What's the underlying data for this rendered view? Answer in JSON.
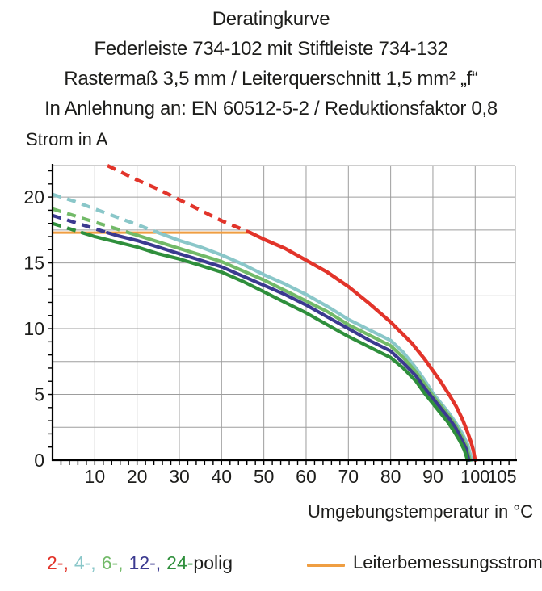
{
  "title": {
    "line1": "Deratingkurve",
    "line2": "Federleiste 734-102 mit Stiftleiste 734-132",
    "line3": "Rastermaß 3,5 mm / Leiterquerschnitt 1,5 mm² „f“",
    "line4": "In Anlehnung an: EN 60512-5-2 / Reduktionsfaktor 0,8"
  },
  "axes": {
    "y_label": "Strom in A",
    "x_label": "Umgebungstemperatur in °C"
  },
  "legend": {
    "poles": [
      {
        "label": "2-,",
        "color": "#e2342a"
      },
      {
        "label": "4-,",
        "color": "#8ac7c9"
      },
      {
        "label": "6-,",
        "color": "#72ba68"
      },
      {
        "label": "12-,",
        "color": "#3b3a90"
      },
      {
        "label": "24-",
        "color": "#2f8f3c"
      }
    ],
    "poles_suffix": "polig",
    "rated_label": "Leiterbemessungsstrom",
    "rated_color": "#ef9e42"
  },
  "chart_data": {
    "type": "line",
    "title": "Deratingkurve Federleiste 734-102 mit Stiftleiste 734-132",
    "xlabel": "Umgebungstemperatur in °C",
    "ylabel": "Strom in A",
    "xlim": [
      0,
      109.5
    ],
    "ylim": [
      0,
      22.4
    ],
    "x_tick_labels": [
      10,
      20,
      30,
      40,
      50,
      60,
      70,
      80,
      90,
      100,
      105
    ],
    "x_gridline_step": 10,
    "x_minor_tick_step": 2,
    "y_tick_labels": [
      0,
      5,
      10,
      15,
      20
    ],
    "y_gridline_step": 2.5,
    "y_minor_tick_step": 1,
    "grid": true,
    "grid_color": "#9d9d9d",
    "axis_color": "#000000",
    "rated_current_line": {
      "label": "Leiterbemessungsstrom",
      "value": 17.3,
      "x_start": 0,
      "x_end": 46.8,
      "color": "#ef9e42"
    },
    "note": "Curves are dashed above the Leiterbemessungsstrom line and solid below it; all curves fall to 0 A near 100 °C.",
    "series": [
      {
        "name": "4-polig",
        "color": "#8ac7c9",
        "dashed": [
          [
            0,
            20.2
          ],
          [
            5,
            19.7
          ],
          [
            10,
            19.1
          ],
          [
            15,
            18.5
          ],
          [
            20,
            17.9
          ],
          [
            25,
            17.3
          ]
        ],
        "solid": [
          [
            25,
            17.3
          ],
          [
            30,
            16.7
          ],
          [
            35,
            16.2
          ],
          [
            40,
            15.6
          ],
          [
            45,
            14.9
          ],
          [
            50,
            14.1
          ],
          [
            55,
            13.4
          ],
          [
            60,
            12.6
          ],
          [
            65,
            11.7
          ],
          [
            70,
            10.7
          ],
          [
            75,
            9.9
          ],
          [
            80,
            9.1
          ],
          [
            83,
            8.2
          ],
          [
            86,
            7.0
          ],
          [
            88,
            6.1
          ],
          [
            90,
            5.1
          ],
          [
            92,
            4.3
          ],
          [
            94,
            3.5
          ],
          [
            95.5,
            2.8
          ],
          [
            97,
            2.0
          ],
          [
            98.2,
            1.2
          ],
          [
            99.2,
            0
          ]
        ]
      },
      {
        "name": "6-polig",
        "color": "#72ba68",
        "dashed": [
          [
            0,
            19.1
          ],
          [
            5,
            18.6
          ],
          [
            10,
            18.1
          ],
          [
            14,
            17.7
          ],
          [
            18,
            17.3
          ]
        ],
        "solid": [
          [
            18,
            17.3
          ],
          [
            20,
            17.1
          ],
          [
            25,
            16.6
          ],
          [
            30,
            16.1
          ],
          [
            35,
            15.6
          ],
          [
            40,
            15.1
          ],
          [
            45,
            14.4
          ],
          [
            50,
            13.7
          ],
          [
            55,
            12.9
          ],
          [
            60,
            12.1
          ],
          [
            65,
            11.3
          ],
          [
            70,
            10.3
          ],
          [
            75,
            9.5
          ],
          [
            80,
            8.7
          ],
          [
            83,
            7.8
          ],
          [
            86,
            6.7
          ],
          [
            88,
            5.8
          ],
          [
            90,
            4.9
          ],
          [
            92,
            4.1
          ],
          [
            94,
            3.3
          ],
          [
            95.5,
            2.6
          ],
          [
            96.8,
            1.8
          ],
          [
            98,
            1.0
          ],
          [
            98.8,
            0
          ]
        ]
      },
      {
        "name": "12-polig",
        "color": "#3b3a90",
        "dashed": [
          [
            0,
            18.6
          ],
          [
            4,
            18.2
          ],
          [
            8,
            17.8
          ],
          [
            13,
            17.3
          ]
        ],
        "solid": [
          [
            13,
            17.3
          ],
          [
            15,
            17.1
          ],
          [
            20,
            16.7
          ],
          [
            25,
            16.2
          ],
          [
            30,
            15.7
          ],
          [
            35,
            15.2
          ],
          [
            40,
            14.7
          ],
          [
            45,
            14.0
          ],
          [
            50,
            13.3
          ],
          [
            55,
            12.6
          ],
          [
            60,
            11.8
          ],
          [
            65,
            10.9
          ],
          [
            70,
            10.0
          ],
          [
            75,
            9.1
          ],
          [
            80,
            8.3
          ],
          [
            83,
            7.4
          ],
          [
            86,
            6.4
          ],
          [
            88,
            5.5
          ],
          [
            90,
            4.7
          ],
          [
            92,
            3.9
          ],
          [
            94,
            3.1
          ],
          [
            95.5,
            2.4
          ],
          [
            96.6,
            1.7
          ],
          [
            97.8,
            0.9
          ],
          [
            98.5,
            0
          ]
        ]
      },
      {
        "name": "24-polig",
        "color": "#2f8f3c",
        "dashed": [
          [
            0,
            18.0
          ],
          [
            3,
            17.7
          ],
          [
            7,
            17.3
          ]
        ],
        "solid": [
          [
            7,
            17.3
          ],
          [
            10,
            17.0
          ],
          [
            15,
            16.6
          ],
          [
            20,
            16.2
          ],
          [
            25,
            15.7
          ],
          [
            30,
            15.3
          ],
          [
            35,
            14.8
          ],
          [
            40,
            14.3
          ],
          [
            45,
            13.6
          ],
          [
            50,
            12.8
          ],
          [
            55,
            12.0
          ],
          [
            60,
            11.2
          ],
          [
            65,
            10.3
          ],
          [
            70,
            9.4
          ],
          [
            75,
            8.6
          ],
          [
            80,
            7.8
          ],
          [
            83,
            7.0
          ],
          [
            86,
            6.0
          ],
          [
            88,
            5.1
          ],
          [
            90,
            4.3
          ],
          [
            92,
            3.5
          ],
          [
            93.5,
            2.9
          ],
          [
            95,
            2.2
          ],
          [
            96.3,
            1.5
          ],
          [
            97.4,
            0.8
          ],
          [
            98.2,
            0
          ]
        ]
      },
      {
        "name": "2-polig",
        "color": "#e2342a",
        "dashed": [
          [
            13,
            22.4
          ],
          [
            20,
            21.3
          ],
          [
            25,
            20.6
          ],
          [
            30,
            19.8
          ],
          [
            35,
            19.0
          ],
          [
            40,
            18.2
          ],
          [
            46.8,
            17.3
          ]
        ],
        "solid": [
          [
            46.8,
            17.3
          ],
          [
            50,
            16.8
          ],
          [
            55,
            16.1
          ],
          [
            60,
            15.2
          ],
          [
            65,
            14.3
          ],
          [
            70,
            13.2
          ],
          [
            75,
            11.9
          ],
          [
            80,
            10.5
          ],
          [
            85,
            8.9
          ],
          [
            88,
            7.7
          ],
          [
            90,
            6.8
          ],
          [
            92,
            5.9
          ],
          [
            94,
            4.9
          ],
          [
            95.5,
            4.1
          ],
          [
            97,
            3.1
          ],
          [
            98,
            2.3
          ],
          [
            99,
            1.4
          ],
          [
            99.6,
            0.7
          ],
          [
            100,
            0
          ]
        ]
      }
    ]
  }
}
